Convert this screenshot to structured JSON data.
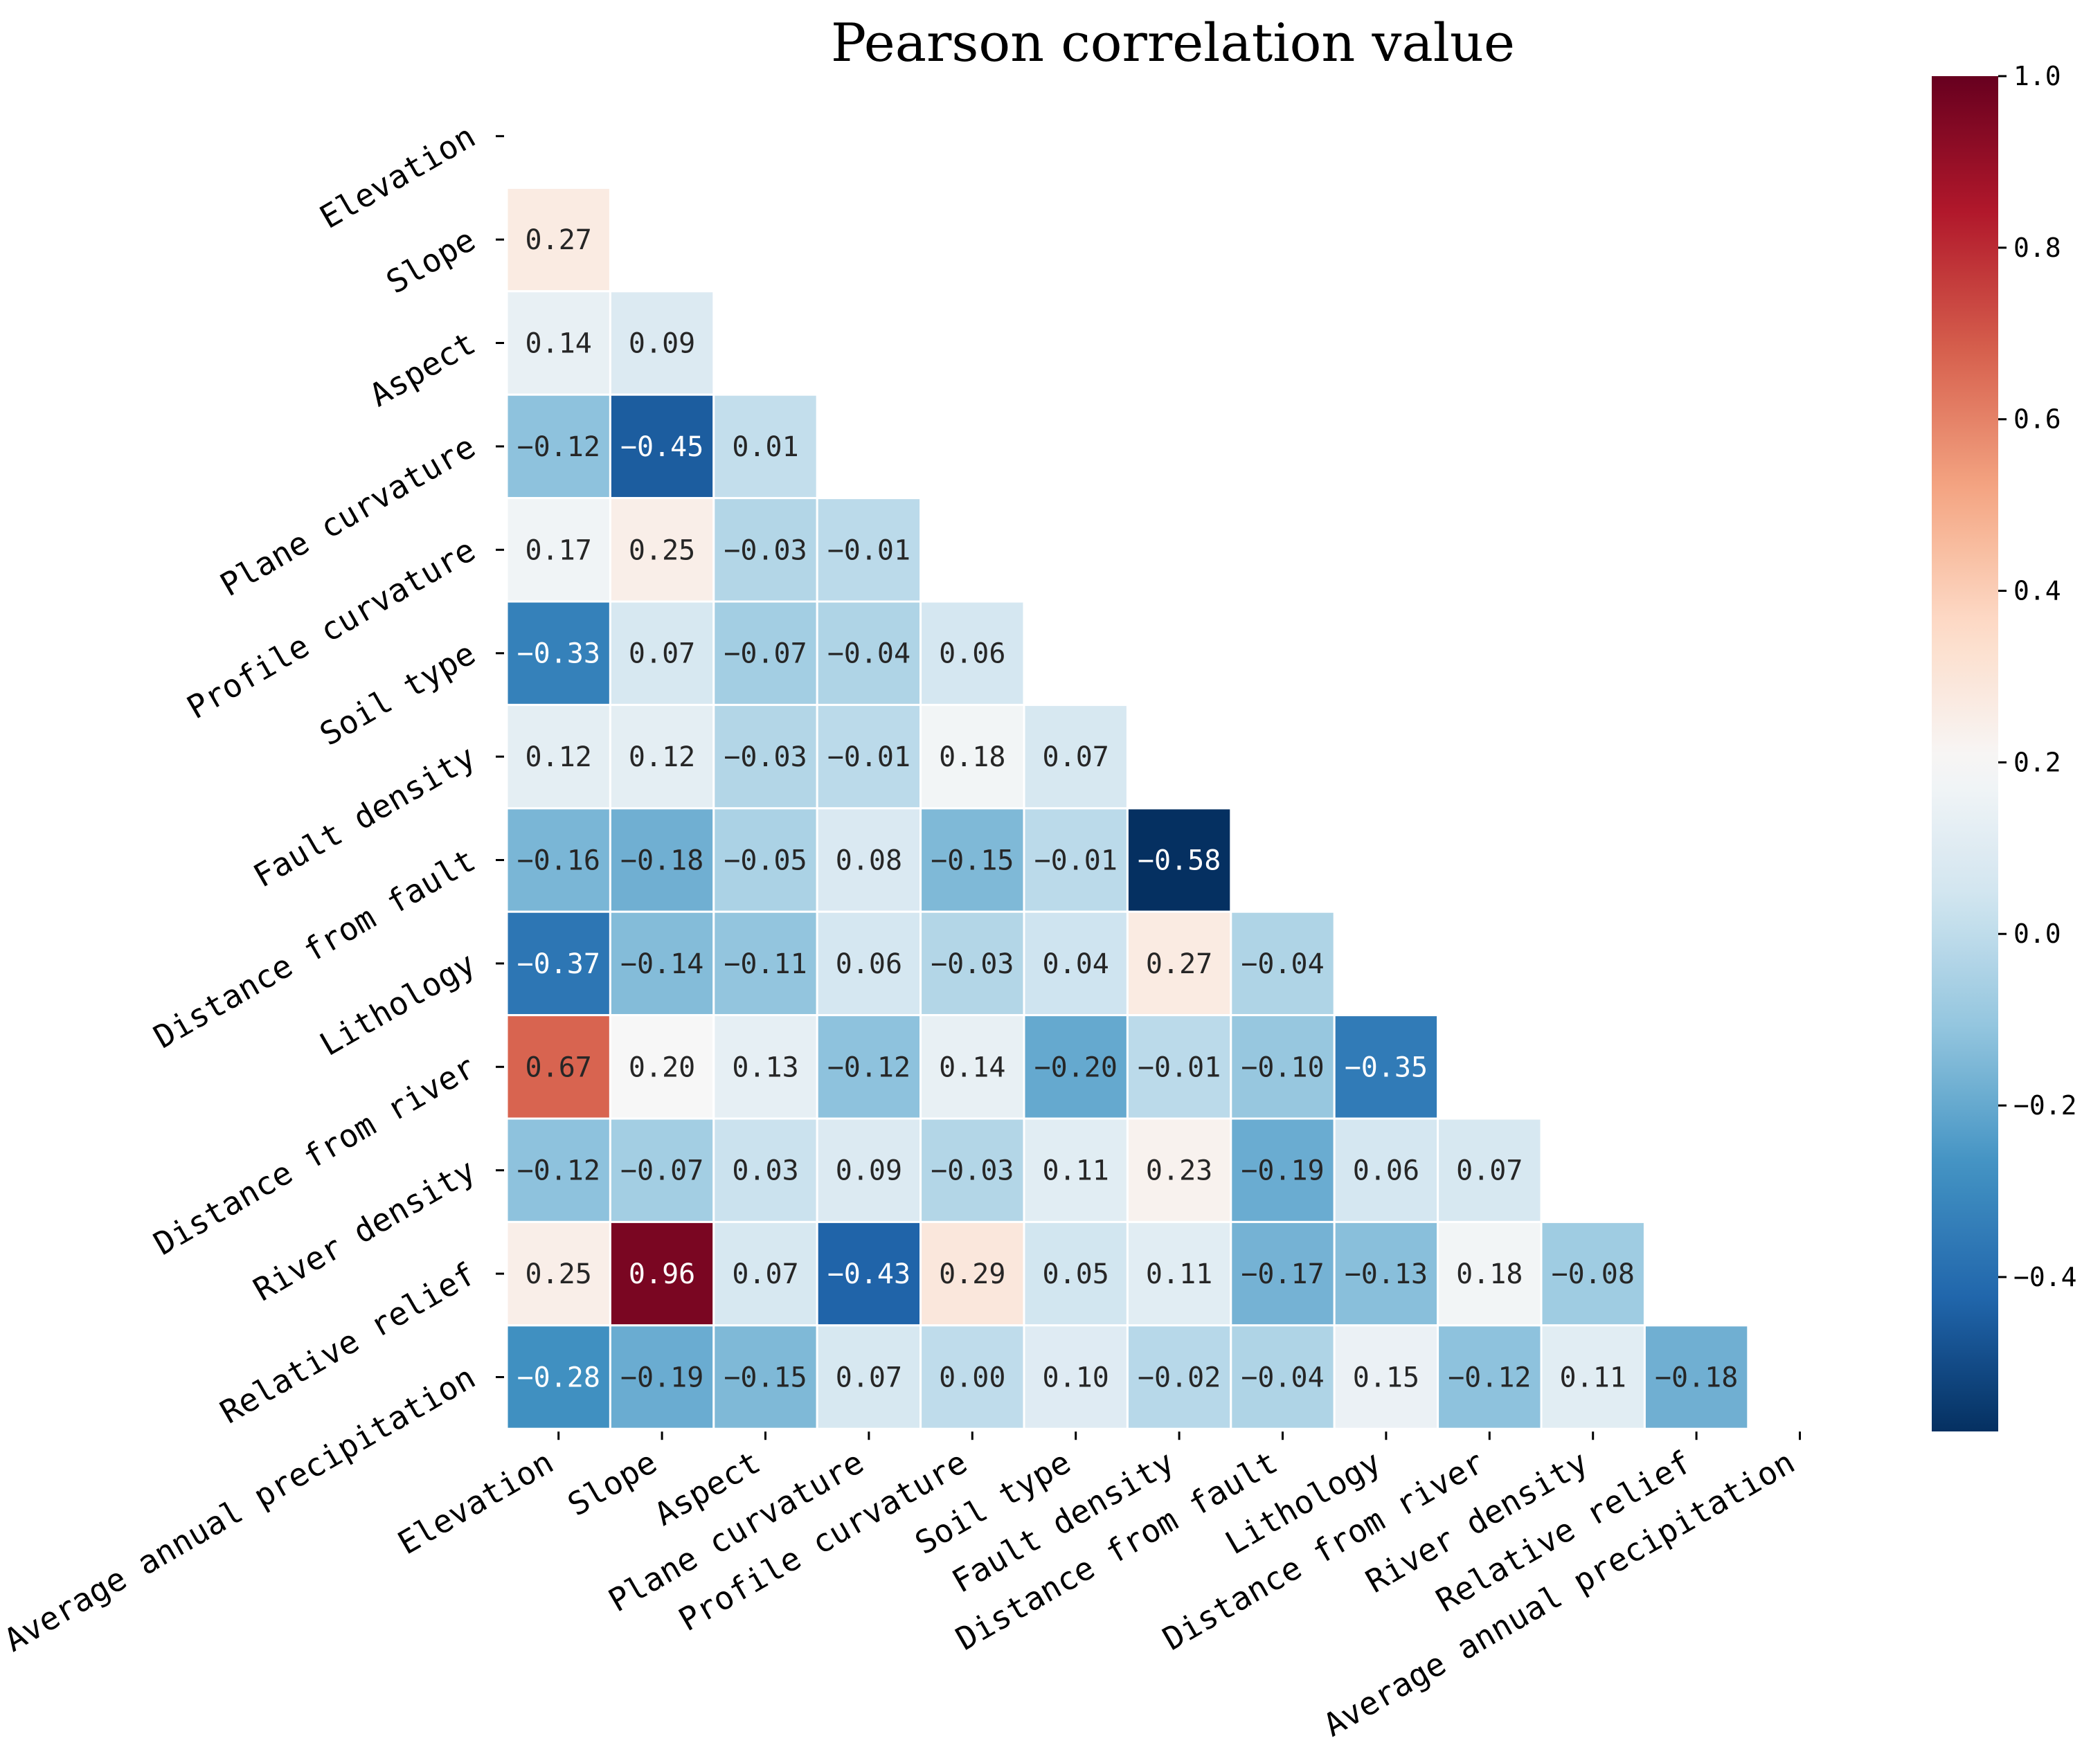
{
  "chart_data": {
    "type": "heatmap",
    "title": "Pearson correlation value",
    "variables": [
      "Elevation",
      "Slope",
      "Aspect",
      "Plane curvature",
      "Profile curvature",
      "Soil type",
      "Fault density",
      "Distance from fault",
      "Lithology",
      "Distance from river",
      "River density",
      "Relative relief",
      "Average annual precipitation"
    ],
    "mask": "upper-triangle-and-diagonal",
    "matrix_lower": [
      [],
      [
        0.27
      ],
      [
        0.14,
        0.09
      ],
      [
        -0.12,
        -0.45,
        0.01
      ],
      [
        0.17,
        0.25,
        -0.03,
        -0.01
      ],
      [
        -0.33,
        0.07,
        -0.07,
        -0.04,
        0.06
      ],
      [
        0.12,
        0.12,
        -0.03,
        -0.01,
        0.18,
        0.07
      ],
      [
        -0.16,
        -0.18,
        -0.05,
        0.08,
        -0.15,
        -0.01,
        -0.58
      ],
      [
        -0.37,
        -0.14,
        -0.11,
        0.06,
        -0.03,
        0.04,
        0.27,
        -0.04
      ],
      [
        0.67,
        0.2,
        0.13,
        -0.12,
        0.14,
        -0.2,
        -0.01,
        -0.1,
        -0.35
      ],
      [
        -0.12,
        -0.07,
        0.03,
        0.09,
        -0.03,
        0.11,
        0.23,
        -0.19,
        0.06,
        0.07
      ],
      [
        0.25,
        0.96,
        0.07,
        -0.43,
        0.29,
        0.05,
        0.11,
        -0.17,
        -0.13,
        0.18,
        -0.08
      ],
      [
        -0.28,
        -0.19,
        -0.15,
        0.07,
        0.0,
        0.1,
        -0.02,
        -0.04,
        0.15,
        -0.12,
        0.11,
        -0.18
      ]
    ],
    "colormap": "RdBu_r",
    "vmin": -0.58,
    "vmax": 1.0,
    "center": 0.2,
    "colorbar": {
      "range": [
        -0.58,
        1.0
      ],
      "ticks": [
        1.0,
        0.8,
        0.6,
        0.4,
        0.2,
        0.0,
        -0.2,
        -0.4
      ],
      "tick_labels": [
        "1.0",
        "0.8",
        "0.6",
        "0.4",
        "0.2",
        "0.0",
        "−0.2",
        "−0.4"
      ]
    },
    "annotation_format": "0.00",
    "xlabel": "",
    "ylabel": ""
  }
}
